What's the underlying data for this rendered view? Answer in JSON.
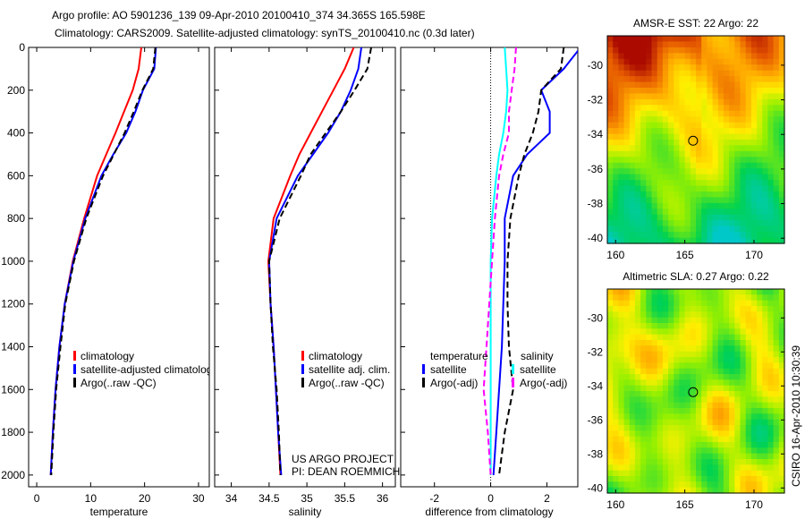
{
  "title_line1": "Argo profile: AO 5901236_139 09-Apr-2010 20100410_374 34.365S 165.598E",
  "title_line2": "Climatology: CARS2009. Satellite-adjusted climatology: synTS_20100410.nc (0.3d later)",
  "credit_lines": [
    "US ARGO PROJECT",
    "PI: DEAN ROEMMICH"
  ],
  "footer_vertical": "CSIRO 16-Apr-2010 10:30:39",
  "colors": {
    "climatology": "#ff0000",
    "satellite": "#0000ff",
    "argo": "#000000",
    "sal_sat": "#00ffff",
    "sal_argo": "#ff00ff"
  },
  "chart_data": [
    {
      "type": "line",
      "xlabel": "temperature",
      "ylabel": "",
      "xlim": [
        -1.5,
        32
      ],
      "ylim": [
        2055,
        0
      ],
      "xticks": [
        "0",
        "10",
        "20",
        "30"
      ],
      "xtick_values": [
        0,
        10,
        20,
        30
      ],
      "yticks": [
        "0",
        "200",
        "400",
        "600",
        "800",
        "1000",
        "1200",
        "1400",
        "1600",
        "1800",
        "2000"
      ],
      "depth": [
        0,
        100,
        200,
        300,
        400,
        500,
        600,
        800,
        1000,
        1200,
        1400,
        1600,
        1800,
        2000
      ],
      "series": [
        {
          "name": "climatology",
          "color": "#ff0000",
          "values": [
            19.4,
            18.9,
            17.8,
            16.2,
            14.6,
            12.9,
            11.2,
            8.8,
            6.7,
            5.2,
            4.2,
            3.5,
            3.0,
            2.6
          ]
        },
        {
          "name": "satellite-adjusted climatology",
          "color": "#0000ff",
          "values": [
            22.1,
            21.8,
            19.7,
            18.3,
            16.6,
            14.2,
            12.0,
            9.0,
            6.8,
            5.2,
            4.2,
            3.5,
            3.0,
            2.6
          ]
        },
        {
          "name": "Argo(..raw -QC)",
          "color": "#000000",
          "dashed": true,
          "values": [
            22.0,
            21.6,
            19.6,
            18.0,
            16.3,
            14.3,
            12.3,
            9.2,
            6.9,
            5.3,
            4.4,
            3.6,
            3.1,
            2.7
          ]
        }
      ],
      "legend": [
        "climatology",
        "satellite-adjusted climatology",
        "Argo(..raw -QC)"
      ]
    },
    {
      "type": "line",
      "xlabel": "salinity",
      "xlim": [
        33.78,
        36.17
      ],
      "ylim": [
        2055,
        0
      ],
      "xticks": [
        "34",
        "34.5",
        "35",
        "35.5",
        "36"
      ],
      "xtick_values": [
        34,
        34.5,
        35,
        35.5,
        36
      ],
      "depth": [
        0,
        100,
        200,
        300,
        400,
        500,
        600,
        800,
        1000,
        1200,
        1400,
        1600,
        1800,
        2000
      ],
      "series": [
        {
          "name": "climatology",
          "color": "#ff0000",
          "values": [
            35.62,
            35.5,
            35.35,
            35.2,
            35.05,
            34.9,
            34.78,
            34.56,
            34.49,
            34.52,
            34.56,
            34.59,
            34.62,
            34.65
          ]
        },
        {
          "name": "satellite adj. clim.",
          "color": "#0000ff",
          "values": [
            35.72,
            35.68,
            35.58,
            35.45,
            35.28,
            35.08,
            34.88,
            34.6,
            34.5,
            34.52,
            34.56,
            34.59,
            34.62,
            34.66
          ]
        },
        {
          "name": "Argo(..raw -QC)",
          "color": "#000000",
          "dashed": true,
          "values": [
            35.85,
            35.8,
            35.63,
            35.45,
            35.25,
            35.05,
            34.92,
            34.64,
            34.5,
            34.52,
            34.55,
            34.6,
            34.63,
            34.65
          ]
        }
      ],
      "legend": [
        "climatology",
        "satellite adj. clim.",
        "Argo(..raw -QC)"
      ]
    },
    {
      "type": "line",
      "xlabel": "difference from climatology",
      "xlim": [
        -3.2,
        3.1
      ],
      "ylim": [
        2055,
        0
      ],
      "xticks": [
        "-2",
        "0",
        "2"
      ],
      "xtick_values": [
        -2,
        0,
        2
      ],
      "depth": [
        0,
        100,
        200,
        300,
        400,
        500,
        600,
        800,
        1000,
        1200,
        1400,
        1600,
        1800,
        2000
      ],
      "series": [
        {
          "name": "temperature satellite",
          "color": "#0000ff",
          "values": [
            3.2,
            2.6,
            1.8,
            2.1,
            2.1,
            1.3,
            0.8,
            0.5,
            0.5,
            0.45,
            0.4,
            0.3,
            0.2,
            0.1
          ]
        },
        {
          "name": "temperature Argo(-adj)",
          "color": "#000000",
          "dashed": true,
          "values": [
            2.6,
            2.5,
            1.8,
            1.7,
            1.5,
            1.2,
            1.0,
            0.7,
            0.6,
            0.6,
            0.65,
            0.8,
            0.5,
            0.3
          ]
        },
        {
          "name": "salinity satellite",
          "color": "#00ffff",
          "values": [
            0.5,
            0.55,
            0.6,
            0.55,
            0.45,
            0.3,
            0.2,
            0.05,
            0.0,
            0.0,
            0.0,
            0.0,
            0.0,
            0.0
          ]
        },
        {
          "name": "salinity Argo(-adj)",
          "color": "#ff00ff",
          "dashed": true,
          "values": [
            0.9,
            0.85,
            0.75,
            0.65,
            0.65,
            0.45,
            0.3,
            0.15,
            0.05,
            -0.05,
            -0.15,
            -0.25,
            -0.1,
            0.0
          ]
        }
      ],
      "legend_headers": [
        "temperature",
        "salinity"
      ],
      "legend": [
        "satellite",
        "Argo(-adj)",
        "satellite",
        "Argo(-adj)"
      ]
    },
    {
      "type": "heatmap",
      "title": "AMSR-E SST: 22 Argo: 22",
      "xlim": [
        159.4,
        172.2
      ],
      "ylim": [
        -28.3,
        -40.3
      ],
      "xticks": [
        "160",
        "165",
        "170"
      ],
      "xtick_values": [
        160,
        165,
        170
      ],
      "yticks": [
        "-30",
        "-32",
        "-34",
        "-36",
        "-38",
        "-40"
      ],
      "ytick_values": [
        -30,
        -32,
        -34,
        -36,
        -38,
        -40
      ],
      "float_position": [
        165.598,
        -34.365
      ]
    },
    {
      "type": "heatmap",
      "title": "Altimetric SLA: 0.27 Argo: 0.22",
      "xlim": [
        159.4,
        172.2
      ],
      "ylim": [
        -28.3,
        -40.3
      ],
      "xticks": [
        "160",
        "165",
        "170"
      ],
      "xtick_values": [
        160,
        165,
        170
      ],
      "yticks": [
        "-30",
        "-32",
        "-34",
        "-36",
        "-38",
        "-40"
      ],
      "ytick_values": [
        -30,
        -32,
        -34,
        -36,
        -38,
        -40
      ],
      "float_position": [
        165.598,
        -34.365
      ]
    }
  ]
}
